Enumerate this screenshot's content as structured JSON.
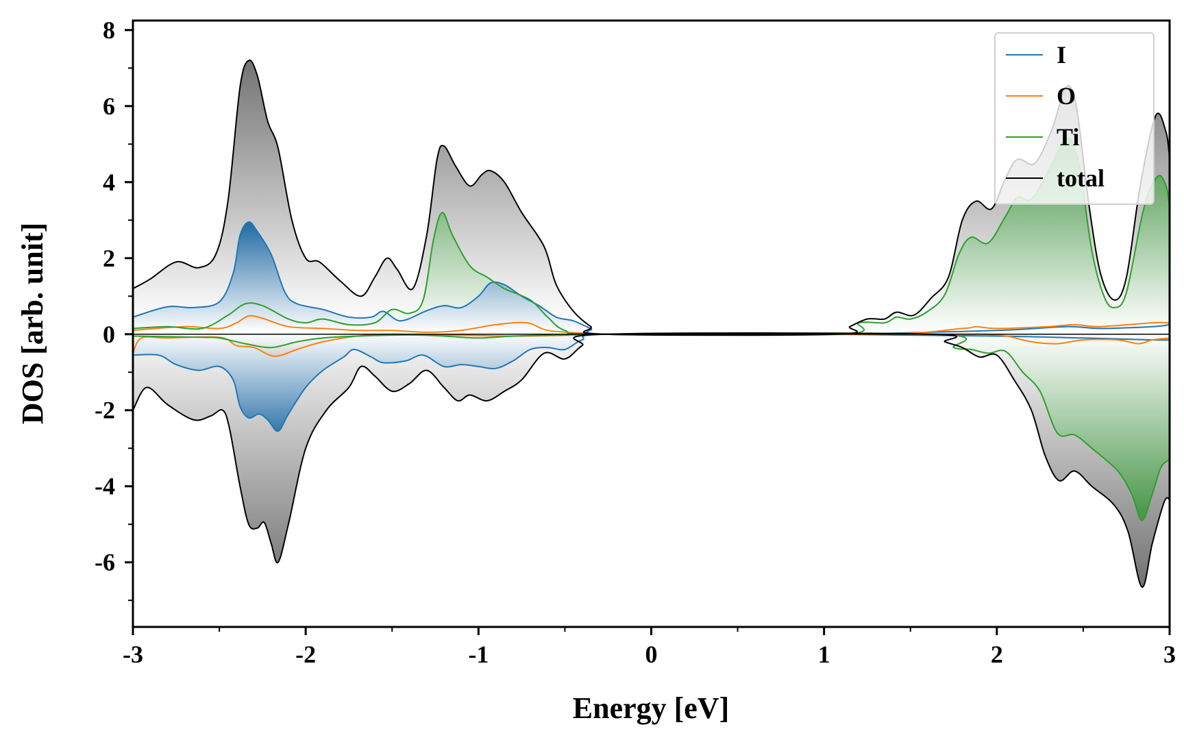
{
  "chart_data": {
    "type": "line",
    "title": "",
    "xlabel": "Energy [eV]",
    "ylabel": "DOS [arb. unit]",
    "xlim": [
      -3,
      3
    ],
    "ylim": [
      -7.7,
      8.25
    ],
    "xticks": [
      -3,
      -2,
      -1,
      0,
      1,
      2,
      3
    ],
    "xtick_labels": [
      "-3",
      "-2",
      "-1",
      "0",
      "1",
      "2",
      "3"
    ],
    "yticks": [
      -6,
      -4,
      -2,
      0,
      2,
      4,
      6,
      8
    ],
    "ytick_labels": [
      "-6",
      "-4",
      "-2",
      "0",
      "2",
      "4",
      "6",
      "8"
    ],
    "grid": false,
    "legend_position": "top-right",
    "series": [
      {
        "name": "I",
        "color": "#1f77b4",
        "fill": "#1f6aa5",
        "up": [
          [
            -3,
            0.45
          ],
          [
            -2.8,
            0.72
          ],
          [
            -2.65,
            0.7
          ],
          [
            -2.5,
            0.85
          ],
          [
            -2.42,
            1.6
          ],
          [
            -2.38,
            2.6
          ],
          [
            -2.33,
            2.95
          ],
          [
            -2.28,
            2.7
          ],
          [
            -2.2,
            2.1
          ],
          [
            -2.12,
            1.1
          ],
          [
            -2.05,
            0.8
          ],
          [
            -1.9,
            0.65
          ],
          [
            -1.75,
            0.45
          ],
          [
            -1.62,
            0.45
          ],
          [
            -1.55,
            0.6
          ],
          [
            -1.45,
            0.35
          ],
          [
            -1.3,
            0.62
          ],
          [
            -1.2,
            0.75
          ],
          [
            -1.1,
            0.7
          ],
          [
            -1.0,
            1.0
          ],
          [
            -0.93,
            1.35
          ],
          [
            -0.85,
            1.3
          ],
          [
            -0.75,
            1.0
          ],
          [
            -0.65,
            0.75
          ],
          [
            -0.55,
            0.45
          ],
          [
            -0.45,
            0.35
          ],
          [
            -0.35,
            0.15
          ],
          [
            -0.25,
            0.0
          ],
          [
            1.0,
            0.0
          ],
          [
            2.0,
            0.1
          ],
          [
            2.4,
            0.2
          ],
          [
            2.6,
            0.15
          ],
          [
            2.9,
            0.2
          ],
          [
            3.0,
            0.25
          ]
        ],
        "down": [
          [
            -3,
            -0.55
          ],
          [
            -2.85,
            -0.55
          ],
          [
            -2.75,
            -0.8
          ],
          [
            -2.62,
            -0.95
          ],
          [
            -2.5,
            -0.85
          ],
          [
            -2.42,
            -1.2
          ],
          [
            -2.38,
            -1.9
          ],
          [
            -2.33,
            -2.2
          ],
          [
            -2.27,
            -2.1
          ],
          [
            -2.22,
            -2.25
          ],
          [
            -2.16,
            -2.55
          ],
          [
            -2.1,
            -2.1
          ],
          [
            -2.0,
            -1.4
          ],
          [
            -1.9,
            -0.95
          ],
          [
            -1.78,
            -0.6
          ],
          [
            -1.72,
            -0.4
          ],
          [
            -1.62,
            -0.6
          ],
          [
            -1.55,
            -0.75
          ],
          [
            -1.42,
            -0.7
          ],
          [
            -1.32,
            -0.55
          ],
          [
            -1.2,
            -0.85
          ],
          [
            -1.1,
            -0.8
          ],
          [
            -1.0,
            -0.85
          ],
          [
            -0.9,
            -0.9
          ],
          [
            -0.8,
            -0.7
          ],
          [
            -0.7,
            -0.4
          ],
          [
            -0.6,
            -0.35
          ],
          [
            -0.5,
            -0.4
          ],
          [
            -0.4,
            -0.15
          ],
          [
            -0.25,
            0.0
          ],
          [
            1.0,
            0.0
          ],
          [
            2.0,
            -0.05
          ],
          [
            2.5,
            -0.1
          ],
          [
            2.9,
            -0.15
          ],
          [
            3.0,
            -0.15
          ]
        ]
      },
      {
        "name": "O",
        "color": "#ff7f0e",
        "fill": "#ff7f0e",
        "up": [
          [
            -3,
            0.1
          ],
          [
            -2.7,
            0.2
          ],
          [
            -2.5,
            0.15
          ],
          [
            -2.4,
            0.3
          ],
          [
            -2.33,
            0.48
          ],
          [
            -2.25,
            0.42
          ],
          [
            -2.1,
            0.2
          ],
          [
            -1.9,
            0.15
          ],
          [
            -1.7,
            0.1
          ],
          [
            -1.5,
            0.1
          ],
          [
            -1.3,
            0.05
          ],
          [
            -1.1,
            0.1
          ],
          [
            -0.9,
            0.25
          ],
          [
            -0.72,
            0.3
          ],
          [
            -0.6,
            0.1
          ],
          [
            -0.4,
            0.03
          ],
          [
            -0.25,
            0.0
          ],
          [
            1.3,
            0.0
          ],
          [
            1.8,
            0.15
          ],
          [
            1.88,
            0.2
          ],
          [
            2.0,
            0.15
          ],
          [
            2.3,
            0.2
          ],
          [
            2.45,
            0.25
          ],
          [
            2.6,
            0.2
          ],
          [
            2.9,
            0.3
          ],
          [
            3.0,
            0.3
          ]
        ],
        "down": [
          [
            -3,
            -0.5
          ],
          [
            -2.95,
            -0.1
          ],
          [
            -2.8,
            -0.1
          ],
          [
            -2.5,
            -0.08
          ],
          [
            -2.4,
            -0.3
          ],
          [
            -2.3,
            -0.35
          ],
          [
            -2.18,
            -0.58
          ],
          [
            -2.05,
            -0.4
          ],
          [
            -1.9,
            -0.2
          ],
          [
            -1.7,
            -0.05
          ],
          [
            -1.5,
            0.0
          ],
          [
            -1.2,
            -0.02
          ],
          [
            -0.8,
            -0.05
          ],
          [
            -0.4,
            -0.02
          ],
          [
            -0.25,
            0.0
          ],
          [
            1.6,
            0.0
          ],
          [
            2.0,
            -0.02
          ],
          [
            2.2,
            -0.2
          ],
          [
            2.35,
            -0.25
          ],
          [
            2.5,
            -0.15
          ],
          [
            2.7,
            -0.15
          ],
          [
            2.82,
            -0.25
          ],
          [
            2.9,
            -0.15
          ],
          [
            3.0,
            -0.1
          ]
        ]
      },
      {
        "name": "Ti",
        "color": "#2ca02c",
        "fill": "#2e8b2e",
        "up": [
          [
            -3,
            0.15
          ],
          [
            -2.8,
            0.2
          ],
          [
            -2.6,
            0.15
          ],
          [
            -2.45,
            0.5
          ],
          [
            -2.35,
            0.8
          ],
          [
            -2.25,
            0.75
          ],
          [
            -2.1,
            0.4
          ],
          [
            -2.0,
            0.3
          ],
          [
            -1.9,
            0.4
          ],
          [
            -1.75,
            0.25
          ],
          [
            -1.6,
            0.3
          ],
          [
            -1.5,
            0.65
          ],
          [
            -1.4,
            0.55
          ],
          [
            -1.32,
            0.9
          ],
          [
            -1.26,
            2.5
          ],
          [
            -1.21,
            3.2
          ],
          [
            -1.15,
            2.6
          ],
          [
            -1.05,
            1.8
          ],
          [
            -0.95,
            1.5
          ],
          [
            -0.85,
            1.2
          ],
          [
            -0.7,
            0.9
          ],
          [
            -0.6,
            0.45
          ],
          [
            -0.5,
            0.1
          ],
          [
            -0.3,
            0.0
          ],
          [
            1.1,
            0.0
          ],
          [
            1.2,
            0.3
          ],
          [
            1.35,
            0.3
          ],
          [
            1.42,
            0.45
          ],
          [
            1.5,
            0.4
          ],
          [
            1.6,
            0.6
          ],
          [
            1.7,
            1.05
          ],
          [
            1.78,
            2.1
          ],
          [
            1.85,
            2.55
          ],
          [
            1.95,
            2.4
          ],
          [
            2.05,
            3.1
          ],
          [
            2.12,
            3.6
          ],
          [
            2.2,
            3.55
          ],
          [
            2.3,
            4.3
          ],
          [
            2.4,
            5.15
          ],
          [
            2.47,
            4.6
          ],
          [
            2.55,
            2.2
          ],
          [
            2.62,
            1.0
          ],
          [
            2.68,
            0.7
          ],
          [
            2.75,
            1.1
          ],
          [
            2.85,
            3.3
          ],
          [
            2.93,
            4.15
          ],
          [
            2.98,
            3.9
          ],
          [
            3.0,
            3.3
          ]
        ],
        "down": [
          [
            -3,
            -0.05
          ],
          [
            -2.6,
            -0.08
          ],
          [
            -2.5,
            -0.1
          ],
          [
            -2.35,
            -0.25
          ],
          [
            -2.2,
            -0.35
          ],
          [
            -2.05,
            -0.2
          ],
          [
            -1.9,
            -0.1
          ],
          [
            -1.7,
            -0.05
          ],
          [
            -1.4,
            -0.02
          ],
          [
            -1.2,
            -0.05
          ],
          [
            -1.0,
            -0.1
          ],
          [
            -0.8,
            -0.05
          ],
          [
            -0.5,
            -0.02
          ],
          [
            -0.3,
            0.0
          ],
          [
            1.65,
            0.0
          ],
          [
            1.75,
            -0.35
          ],
          [
            1.85,
            -0.4
          ],
          [
            1.95,
            -0.5
          ],
          [
            2.05,
            -0.45
          ],
          [
            2.15,
            -1.0
          ],
          [
            2.25,
            -1.5
          ],
          [
            2.35,
            -2.6
          ],
          [
            2.45,
            -2.65
          ],
          [
            2.55,
            -3.0
          ],
          [
            2.7,
            -3.6
          ],
          [
            2.78,
            -4.2
          ],
          [
            2.84,
            -4.9
          ],
          [
            2.9,
            -4.2
          ],
          [
            2.95,
            -3.5
          ],
          [
            3.0,
            -3.3
          ]
        ]
      },
      {
        "name": "total",
        "color": "#000000",
        "fill": "#999999",
        "up": [
          [
            -3,
            1.2
          ],
          [
            -2.9,
            1.45
          ],
          [
            -2.75,
            1.9
          ],
          [
            -2.62,
            1.75
          ],
          [
            -2.52,
            2.1
          ],
          [
            -2.45,
            3.5
          ],
          [
            -2.38,
            6.5
          ],
          [
            -2.33,
            7.2
          ],
          [
            -2.28,
            6.8
          ],
          [
            -2.22,
            5.6
          ],
          [
            -2.16,
            4.9
          ],
          [
            -2.08,
            3.0
          ],
          [
            -2.0,
            2.0
          ],
          [
            -1.92,
            1.9
          ],
          [
            -1.8,
            1.4
          ],
          [
            -1.68,
            1.0
          ],
          [
            -1.6,
            1.5
          ],
          [
            -1.53,
            2.0
          ],
          [
            -1.47,
            1.7
          ],
          [
            -1.38,
            1.2
          ],
          [
            -1.3,
            2.6
          ],
          [
            -1.24,
            4.6
          ],
          [
            -1.2,
            4.95
          ],
          [
            -1.13,
            4.4
          ],
          [
            -1.05,
            3.9
          ],
          [
            -0.98,
            4.2
          ],
          [
            -0.93,
            4.3
          ],
          [
            -0.85,
            4.0
          ],
          [
            -0.75,
            3.2
          ],
          [
            -0.62,
            2.3
          ],
          [
            -0.55,
            1.3
          ],
          [
            -0.45,
            0.6
          ],
          [
            -0.35,
            0.2
          ],
          [
            -0.27,
            0.0
          ],
          [
            1.07,
            0.0
          ],
          [
            1.15,
            0.2
          ],
          [
            1.25,
            0.4
          ],
          [
            1.35,
            0.4
          ],
          [
            1.42,
            0.58
          ],
          [
            1.52,
            0.5
          ],
          [
            1.62,
            0.95
          ],
          [
            1.72,
            1.5
          ],
          [
            1.8,
            3.0
          ],
          [
            1.88,
            3.5
          ],
          [
            1.97,
            3.3
          ],
          [
            2.05,
            4.1
          ],
          [
            2.12,
            4.6
          ],
          [
            2.22,
            4.5
          ],
          [
            2.32,
            5.4
          ],
          [
            2.4,
            6.5
          ],
          [
            2.46,
            6.0
          ],
          [
            2.53,
            3.5
          ],
          [
            2.6,
            1.6
          ],
          [
            2.68,
            0.9
          ],
          [
            2.75,
            1.5
          ],
          [
            2.83,
            3.9
          ],
          [
            2.92,
            5.75
          ],
          [
            2.98,
            5.3
          ],
          [
            3.0,
            4.6
          ]
        ],
        "down": [
          [
            -3,
            -2.0
          ],
          [
            -2.92,
            -1.4
          ],
          [
            -2.8,
            -1.85
          ],
          [
            -2.65,
            -2.25
          ],
          [
            -2.55,
            -2.15
          ],
          [
            -2.48,
            -2.0
          ],
          [
            -2.44,
            -2.5
          ],
          [
            -2.38,
            -4.0
          ],
          [
            -2.33,
            -5.0
          ],
          [
            -2.28,
            -5.1
          ],
          [
            -2.24,
            -4.95
          ],
          [
            -2.2,
            -5.5
          ],
          [
            -2.16,
            -6.0
          ],
          [
            -2.1,
            -5.0
          ],
          [
            -2.0,
            -3.0
          ],
          [
            -1.88,
            -2.0
          ],
          [
            -1.75,
            -1.4
          ],
          [
            -1.68,
            -0.85
          ],
          [
            -1.6,
            -1.1
          ],
          [
            -1.5,
            -1.5
          ],
          [
            -1.4,
            -1.3
          ],
          [
            -1.3,
            -0.95
          ],
          [
            -1.2,
            -1.4
          ],
          [
            -1.12,
            -1.75
          ],
          [
            -1.05,
            -1.6
          ],
          [
            -0.95,
            -1.75
          ],
          [
            -0.85,
            -1.5
          ],
          [
            -0.75,
            -1.2
          ],
          [
            -0.62,
            -0.5
          ],
          [
            -0.5,
            -0.65
          ],
          [
            -0.4,
            -0.3
          ],
          [
            -0.27,
            0.0
          ],
          [
            1.6,
            0.0
          ],
          [
            1.7,
            -0.2
          ],
          [
            1.8,
            -0.35
          ],
          [
            1.9,
            -0.6
          ],
          [
            2.0,
            -0.55
          ],
          [
            2.1,
            -1.2
          ],
          [
            2.2,
            -2.0
          ],
          [
            2.28,
            -3.2
          ],
          [
            2.36,
            -3.85
          ],
          [
            2.45,
            -3.6
          ],
          [
            2.55,
            -4.0
          ],
          [
            2.68,
            -4.5
          ],
          [
            2.76,
            -5.2
          ],
          [
            2.84,
            -6.65
          ],
          [
            2.9,
            -5.5
          ],
          [
            2.97,
            -4.4
          ],
          [
            3.0,
            -4.35
          ]
        ]
      }
    ]
  }
}
